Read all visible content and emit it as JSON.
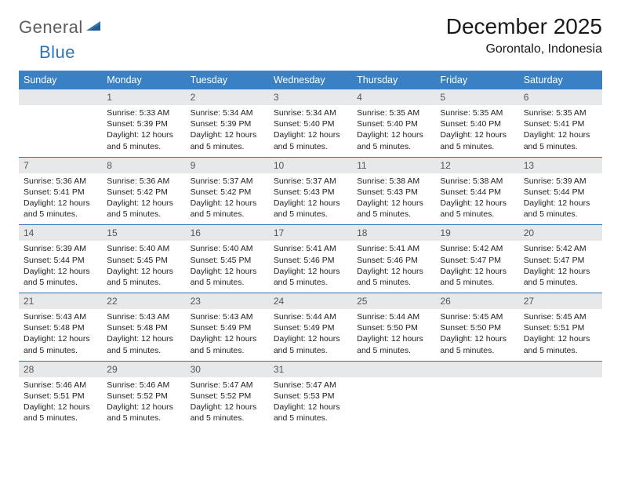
{
  "logo": {
    "general": "General",
    "blue": "Blue"
  },
  "title": "December 2025",
  "subtitle": "Gorontalo, Indonesia",
  "colors": {
    "header_bg": "#3a80c4",
    "header_fg": "#ffffff",
    "daynum_bg": "#e7e8e9",
    "daynum_fg": "#555555",
    "row_border": "#2f72b6",
    "logo_gray": "#5c5c5c",
    "logo_blue": "#2f72b6"
  },
  "weekdays": [
    "Sunday",
    "Monday",
    "Tuesday",
    "Wednesday",
    "Thursday",
    "Friday",
    "Saturday"
  ],
  "weeks": [
    [
      null,
      {
        "n": "1",
        "sunrise": "5:33 AM",
        "sunset": "5:39 PM",
        "daylight": "12 hours and 5 minutes."
      },
      {
        "n": "2",
        "sunrise": "5:34 AM",
        "sunset": "5:39 PM",
        "daylight": "12 hours and 5 minutes."
      },
      {
        "n": "3",
        "sunrise": "5:34 AM",
        "sunset": "5:40 PM",
        "daylight": "12 hours and 5 minutes."
      },
      {
        "n": "4",
        "sunrise": "5:35 AM",
        "sunset": "5:40 PM",
        "daylight": "12 hours and 5 minutes."
      },
      {
        "n": "5",
        "sunrise": "5:35 AM",
        "sunset": "5:40 PM",
        "daylight": "12 hours and 5 minutes."
      },
      {
        "n": "6",
        "sunrise": "5:35 AM",
        "sunset": "5:41 PM",
        "daylight": "12 hours and 5 minutes."
      }
    ],
    [
      {
        "n": "7",
        "sunrise": "5:36 AM",
        "sunset": "5:41 PM",
        "daylight": "12 hours and 5 minutes."
      },
      {
        "n": "8",
        "sunrise": "5:36 AM",
        "sunset": "5:42 PM",
        "daylight": "12 hours and 5 minutes."
      },
      {
        "n": "9",
        "sunrise": "5:37 AM",
        "sunset": "5:42 PM",
        "daylight": "12 hours and 5 minutes."
      },
      {
        "n": "10",
        "sunrise": "5:37 AM",
        "sunset": "5:43 PM",
        "daylight": "12 hours and 5 minutes."
      },
      {
        "n": "11",
        "sunrise": "5:38 AM",
        "sunset": "5:43 PM",
        "daylight": "12 hours and 5 minutes."
      },
      {
        "n": "12",
        "sunrise": "5:38 AM",
        "sunset": "5:44 PM",
        "daylight": "12 hours and 5 minutes."
      },
      {
        "n": "13",
        "sunrise": "5:39 AM",
        "sunset": "5:44 PM",
        "daylight": "12 hours and 5 minutes."
      }
    ],
    [
      {
        "n": "14",
        "sunrise": "5:39 AM",
        "sunset": "5:44 PM",
        "daylight": "12 hours and 5 minutes."
      },
      {
        "n": "15",
        "sunrise": "5:40 AM",
        "sunset": "5:45 PM",
        "daylight": "12 hours and 5 minutes."
      },
      {
        "n": "16",
        "sunrise": "5:40 AM",
        "sunset": "5:45 PM",
        "daylight": "12 hours and 5 minutes."
      },
      {
        "n": "17",
        "sunrise": "5:41 AM",
        "sunset": "5:46 PM",
        "daylight": "12 hours and 5 minutes."
      },
      {
        "n": "18",
        "sunrise": "5:41 AM",
        "sunset": "5:46 PM",
        "daylight": "12 hours and 5 minutes."
      },
      {
        "n": "19",
        "sunrise": "5:42 AM",
        "sunset": "5:47 PM",
        "daylight": "12 hours and 5 minutes."
      },
      {
        "n": "20",
        "sunrise": "5:42 AM",
        "sunset": "5:47 PM",
        "daylight": "12 hours and 5 minutes."
      }
    ],
    [
      {
        "n": "21",
        "sunrise": "5:43 AM",
        "sunset": "5:48 PM",
        "daylight": "12 hours and 5 minutes."
      },
      {
        "n": "22",
        "sunrise": "5:43 AM",
        "sunset": "5:48 PM",
        "daylight": "12 hours and 5 minutes."
      },
      {
        "n": "23",
        "sunrise": "5:43 AM",
        "sunset": "5:49 PM",
        "daylight": "12 hours and 5 minutes."
      },
      {
        "n": "24",
        "sunrise": "5:44 AM",
        "sunset": "5:49 PM",
        "daylight": "12 hours and 5 minutes."
      },
      {
        "n": "25",
        "sunrise": "5:44 AM",
        "sunset": "5:50 PM",
        "daylight": "12 hours and 5 minutes."
      },
      {
        "n": "26",
        "sunrise": "5:45 AM",
        "sunset": "5:50 PM",
        "daylight": "12 hours and 5 minutes."
      },
      {
        "n": "27",
        "sunrise": "5:45 AM",
        "sunset": "5:51 PM",
        "daylight": "12 hours and 5 minutes."
      }
    ],
    [
      {
        "n": "28",
        "sunrise": "5:46 AM",
        "sunset": "5:51 PM",
        "daylight": "12 hours and 5 minutes."
      },
      {
        "n": "29",
        "sunrise": "5:46 AM",
        "sunset": "5:52 PM",
        "daylight": "12 hours and 5 minutes."
      },
      {
        "n": "30",
        "sunrise": "5:47 AM",
        "sunset": "5:52 PM",
        "daylight": "12 hours and 5 minutes."
      },
      {
        "n": "31",
        "sunrise": "5:47 AM",
        "sunset": "5:53 PM",
        "daylight": "12 hours and 5 minutes."
      },
      null,
      null,
      null
    ]
  ],
  "labels": {
    "sunrise": "Sunrise:",
    "sunset": "Sunset:",
    "daylight": "Daylight:"
  }
}
